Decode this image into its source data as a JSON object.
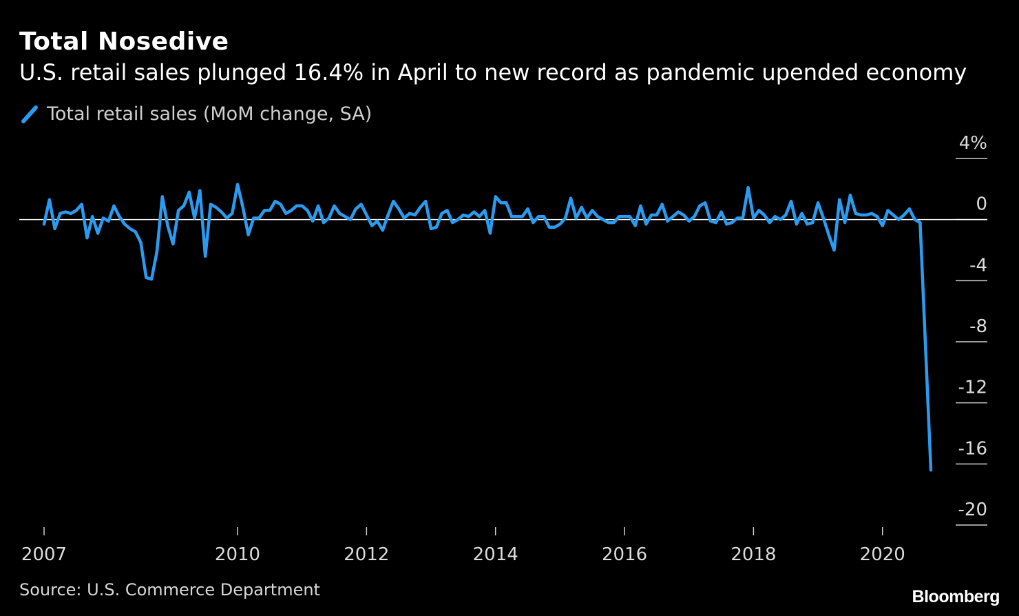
{
  "header": {
    "title": "Total Nosedive",
    "subtitle": "U.S. retail sales plunged 16.4% in April to new record as pandemic upended economy"
  },
  "legend": {
    "label": "Total retail sales (MoM change, SA)",
    "color": "#2b9bf0"
  },
  "footer": {
    "source": "Source: U.S. Commerce Department",
    "brand": "Bloomberg"
  },
  "chart_data": {
    "type": "line",
    "title": "Total Nosedive",
    "subtitle": "U.S. retail sales plunged 16.4% in April to new record as pandemic upended economy",
    "xlabel": "",
    "ylabel": "",
    "ylim": [
      -20,
      4
    ],
    "xlim": [
      "2007-01",
      "2020-06"
    ],
    "y_ticks": [
      "4%",
      "0",
      "-4",
      "-8",
      "-12",
      "-16",
      "-20"
    ],
    "y_tick_values": [
      4,
      0,
      -4,
      -8,
      -12,
      -16,
      -20
    ],
    "x_ticks": [
      "2007",
      "2010",
      "2012",
      "2014",
      "2016",
      "2018",
      "2020"
    ],
    "x_tick_values": [
      "2007-01",
      "2010-01",
      "2012-01",
      "2014-01",
      "2016-01",
      "2018-01",
      "2020-01"
    ],
    "zero_line": true,
    "grid": false,
    "legend_position": "top-left",
    "series": [
      {
        "name": "Total retail sales (MoM change, SA)",
        "color": "#2b9bf0",
        "start": "2007-01",
        "frequency": "monthly",
        "values": [
          -0.3,
          1.3,
          -0.6,
          0.4,
          0.5,
          0.4,
          0.6,
          1.0,
          -1.2,
          0.2,
          -0.9,
          0.1,
          -0.1,
          0.9,
          0.2,
          -0.3,
          -0.6,
          -0.8,
          -1.5,
          -3.8,
          -3.9,
          -2.1,
          1.5,
          -0.4,
          -1.6,
          0.6,
          0.9,
          1.8,
          0.1,
          1.9,
          -2.4,
          1.0,
          0.8,
          0.5,
          0.1,
          0.4,
          2.3,
          0.8,
          -1.0,
          0.1,
          0.1,
          0.6,
          0.6,
          1.2,
          1.0,
          0.4,
          0.6,
          0.9,
          0.9,
          0.6,
          -0.1,
          0.9,
          -0.2,
          0.1,
          0.9,
          0.4,
          0.2,
          0.0,
          0.7,
          1.0,
          0.3,
          -0.4,
          -0.1,
          -0.7,
          0.3,
          1.2,
          0.7,
          0.1,
          0.4,
          0.3,
          0.8,
          1.2,
          -0.6,
          -0.5,
          0.4,
          0.6,
          -0.2,
          0.0,
          0.3,
          0.2,
          0.5,
          0.2,
          0.6,
          -0.9,
          1.5,
          1.1,
          1.1,
          0.2,
          0.2,
          0.2,
          0.7,
          -0.2,
          0.2,
          0.2,
          -0.5,
          -0.5,
          -0.3,
          0.1,
          1.4,
          0.1,
          0.8,
          0.1,
          0.6,
          0.2,
          0.0,
          -0.2,
          -0.2,
          0.2,
          0.2,
          0.2,
          -0.4,
          0.9,
          -0.3,
          0.3,
          0.3,
          1.0,
          -0.1,
          0.2,
          0.5,
          0.3,
          -0.1,
          0.2,
          0.9,
          1.1,
          -0.1,
          -0.2,
          0.5,
          -0.3,
          -0.2,
          0.1,
          0.1,
          2.1,
          0.1,
          0.6,
          0.3,
          -0.2,
          0.2,
          0.0,
          0.3,
          1.2,
          -0.3,
          0.4,
          -0.3,
          -0.2,
          1.1,
          0.1,
          -1.0,
          -2.0,
          1.3,
          -0.2,
          1.6,
          0.4,
          0.3,
          0.3,
          0.4,
          0.2,
          -0.4,
          0.6,
          0.3,
          0.0,
          0.3,
          0.7,
          0.0,
          -0.2,
          -8.3,
          -16.4
        ]
      }
    ]
  }
}
